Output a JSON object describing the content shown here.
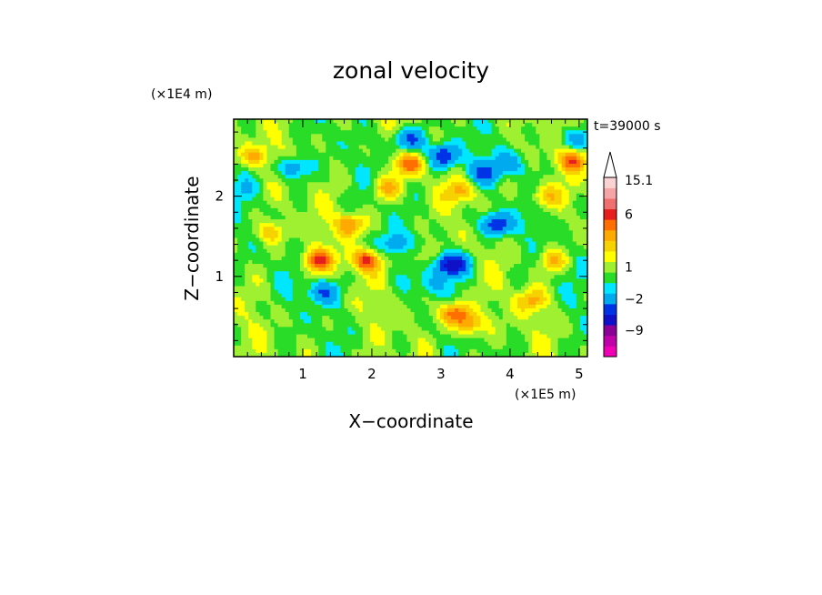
{
  "chart_data": {
    "type": "heatmap",
    "title": "zonal velocity",
    "xlabel": "X−coordinate",
    "ylabel": "Z−coordinate",
    "x_scale_label": "(×1E5 m)",
    "y_scale_label": "(×1E4 m)",
    "time_label": "t=39000 s",
    "xlim": [
      0,
      5.12
    ],
    "ylim": [
      0,
      2.96
    ],
    "x_ticks": [
      1,
      2,
      3,
      4,
      5
    ],
    "y_ticks": [
      1,
      2
    ],
    "colorbar": {
      "labels": [
        {
          "text": "15.1",
          "value": 15.1
        },
        {
          "text": "6",
          "value": 6
        },
        {
          "text": "1",
          "value": 1
        },
        {
          "text": "−2",
          "value": -2
        },
        {
          "text": "−9",
          "value": -9
        }
      ],
      "colors": [
        "#f000b4",
        "#c000a8",
        "#8c0096",
        "#1010c8",
        "#0032e6",
        "#00aaee",
        "#00e6ff",
        "#28dc28",
        "#a0f032",
        "#ffff00",
        "#f5d200",
        "#ffaa00",
        "#ff6e00",
        "#e61e1e",
        "#f07070",
        "#f5a5a5",
        "#fad2d2"
      ]
    },
    "field_features": [
      {
        "x": 3.15,
        "z": 1.15,
        "value": -8
      },
      {
        "x": 3.8,
        "z": 1.65,
        "value": -6
      },
      {
        "x": 3.05,
        "z": 2.5,
        "value": -6
      },
      {
        "x": 0.85,
        "z": 2.35,
        "value": -4
      },
      {
        "x": 2.55,
        "z": 2.7,
        "value": -5
      },
      {
        "x": 1.3,
        "z": 0.8,
        "value": -4
      },
      {
        "x": 2.3,
        "z": 1.4,
        "value": -3
      },
      {
        "x": 3.6,
        "z": 2.3,
        "value": -4
      },
      {
        "x": 4.0,
        "z": 2.4,
        "value": -3
      },
      {
        "x": 4.95,
        "z": 2.7,
        "value": -3
      },
      {
        "x": 1.2,
        "z": 1.2,
        "value": 5
      },
      {
        "x": 1.9,
        "z": 1.2,
        "value": 5
      },
      {
        "x": 3.2,
        "z": 0.55,
        "value": 5
      },
      {
        "x": 3.4,
        "z": 0.4,
        "value": 4
      },
      {
        "x": 2.55,
        "z": 2.4,
        "value": 4
      },
      {
        "x": 3.3,
        "z": 2.05,
        "value": 3
      },
      {
        "x": 1.7,
        "z": 1.65,
        "value": 4
      },
      {
        "x": 4.9,
        "z": 2.45,
        "value": 4
      },
      {
        "x": 0.3,
        "z": 2.5,
        "value": 3
      },
      {
        "x": 2.2,
        "z": 2.1,
        "value": 3
      },
      {
        "x": 4.3,
        "z": 0.7,
        "value": 3
      },
      {
        "x": 4.5,
        "z": 2.0,
        "value": 3
      },
      {
        "x": 4.6,
        "z": 1.2,
        "value": 3
      },
      {
        "x": 2.85,
        "z": 0.9,
        "value": -2
      },
      {
        "x": 2.7,
        "z": 1.25,
        "value": 2
      },
      {
        "x": 0.1,
        "z": 2.1,
        "value": -1
      },
      {
        "x": 0.55,
        "z": 1.55,
        "value": 3
      }
    ]
  }
}
